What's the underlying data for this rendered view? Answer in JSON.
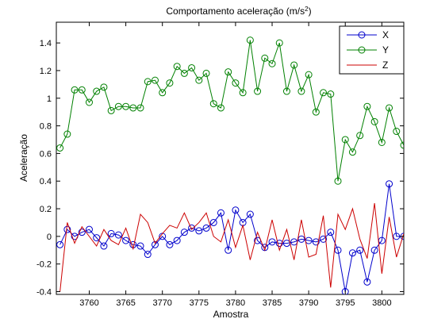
{
  "chart_data": {
    "type": "line",
    "title": "Comportamento aceleração (m/s",
    "title_superscript": "2",
    "title_suffix": ")",
    "xlabel": "Amostra",
    "ylabel": "Aceleração",
    "xlim": [
      3755.5,
      3803
    ],
    "ylim": [
      -0.42,
      1.55
    ],
    "xticks": [
      3760,
      3765,
      3770,
      3775,
      3780,
      3785,
      3790,
      3795,
      3800
    ],
    "yticks": [
      -0.4,
      -0.2,
      0,
      0.2,
      0.4,
      0.6,
      0.8,
      1,
      1.2,
      1.4
    ],
    "ytick_labels": [
      "-0.4",
      "-0.2",
      "0",
      "0.2",
      "0.4",
      "0.6",
      "0.8",
      "1",
      "1.2",
      "1.4"
    ],
    "grid": false,
    "legend_position": "top-right",
    "series": [
      {
        "name": "X",
        "color": "#0000cc",
        "marker": "circle",
        "x": [
          3756,
          3757,
          3758,
          3759,
          3760,
          3761,
          3762,
          3763,
          3764,
          3765,
          3766,
          3767,
          3768,
          3769,
          3770,
          3771,
          3772,
          3773,
          3774,
          3775,
          3776,
          3777,
          3778,
          3779,
          3780,
          3781,
          3782,
          3783,
          3784,
          3785,
          3786,
          3787,
          3788,
          3789,
          3790,
          3791,
          3792,
          3793,
          3794,
          3795,
          3796,
          3797,
          3798,
          3799,
          3800,
          3801,
          3802,
          3803
        ],
        "y": [
          -0.06,
          0.05,
          0.0,
          0.03,
          0.05,
          -0.01,
          -0.07,
          0.02,
          0.01,
          -0.03,
          -0.06,
          -0.07,
          -0.13,
          -0.06,
          0.0,
          -0.06,
          -0.03,
          0.03,
          0.06,
          0.04,
          0.06,
          0.1,
          0.17,
          -0.1,
          0.19,
          0.1,
          0.16,
          -0.03,
          -0.08,
          -0.04,
          -0.05,
          -0.05,
          -0.04,
          -0.02,
          -0.03,
          -0.04,
          -0.02,
          0.03,
          -0.1,
          -0.4,
          -0.12,
          -0.1,
          -0.33,
          -0.1,
          -0.03,
          0.38,
          0.0,
          0.0
        ]
      },
      {
        "name": "Y",
        "color": "#008000",
        "marker": "circle",
        "x": [
          3756,
          3757,
          3758,
          3759,
          3760,
          3761,
          3762,
          3763,
          3764,
          3765,
          3766,
          3767,
          3768,
          3769,
          3770,
          3771,
          3772,
          3773,
          3774,
          3775,
          3776,
          3777,
          3778,
          3779,
          3780,
          3781,
          3782,
          3783,
          3784,
          3785,
          3786,
          3787,
          3788,
          3789,
          3790,
          3791,
          3792,
          3793,
          3794,
          3795,
          3796,
          3797,
          3798,
          3799,
          3800,
          3801,
          3802,
          3803
        ],
        "y": [
          0.64,
          0.74,
          1.06,
          1.06,
          0.97,
          1.05,
          1.08,
          0.91,
          0.94,
          0.94,
          0.93,
          0.93,
          1.12,
          1.13,
          1.04,
          1.11,
          1.23,
          1.18,
          1.22,
          1.13,
          1.18,
          0.96,
          0.93,
          1.19,
          1.11,
          1.04,
          1.42,
          1.05,
          1.29,
          1.25,
          1.4,
          1.05,
          1.24,
          1.05,
          1.17,
          0.9,
          1.04,
          1.03,
          0.4,
          0.7,
          0.61,
          0.73,
          0.94,
          0.83,
          0.68,
          0.93,
          0.76,
          0.66
        ]
      },
      {
        "name": "Z",
        "color": "#cc0000",
        "marker": "none",
        "x": [
          3756,
          3757,
          3758,
          3759,
          3760,
          3761,
          3762,
          3763,
          3764,
          3765,
          3766,
          3767,
          3768,
          3769,
          3770,
          3771,
          3772,
          3773,
          3774,
          3775,
          3776,
          3777,
          3778,
          3779,
          3780,
          3781,
          3782,
          3783,
          3784,
          3785,
          3786,
          3787,
          3788,
          3789,
          3790,
          3791,
          3792,
          3793,
          3794,
          3795,
          3796,
          3797,
          3798,
          3799,
          3800,
          3801,
          3802,
          3803
        ],
        "y": [
          -0.4,
          0.1,
          -0.05,
          0.07,
          0.0,
          -0.07,
          0.05,
          -0.03,
          -0.06,
          0.06,
          -0.09,
          0.16,
          0.1,
          -0.05,
          0.02,
          0.08,
          0.06,
          0.17,
          0.05,
          0.1,
          0.17,
          0.0,
          -0.04,
          0.12,
          -0.08,
          0.08,
          -0.17,
          0.03,
          -0.1,
          0.12,
          -0.1,
          0.05,
          -0.17,
          0.12,
          -0.15,
          -0.13,
          0.15,
          -0.37,
          0.16,
          0.05,
          0.2,
          -0.02,
          -0.16,
          0.24,
          -0.27,
          0.14,
          -0.15,
          0.02
        ]
      }
    ]
  }
}
